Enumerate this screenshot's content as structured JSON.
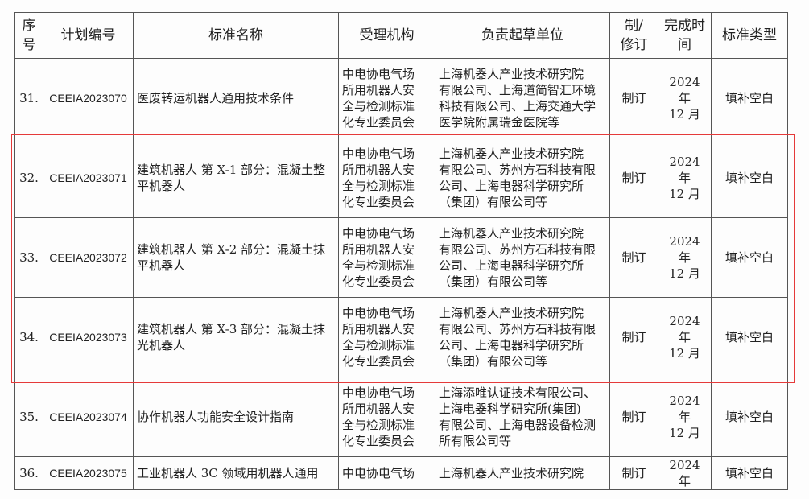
{
  "headers": [
    "序\n号",
    "计划编号",
    "标准名称",
    "受理机构",
    "负责起草单位",
    "制/\n修订",
    "完成时\n间",
    "标准类型"
  ],
  "rows": [
    {
      "no": "31.",
      "code": "CEEIA2023070",
      "name": "医废转运机器人通用技术条件",
      "org": "中电协电气场\n所用机器人安\n全与检测标准\n化专业委员会",
      "drafters": "上海机器人产业技术研究院\n有限公司、上海道简智汇环境\n科技有限公司、上海交通大学\n医学院附属瑞金医院等",
      "type": "制订",
      "time": "2024 年\n12 月",
      "category": "填补空白"
    },
    {
      "no": "32.",
      "code": "CEEIA2023071",
      "name": "建筑机器人 第 X-1 部分：混凝土整\n平机器人",
      "org": "中电协电气场\n所用机器人安\n全与检测标准\n化专业委员会",
      "drafters": "上海机器人产业技术研究院\n有限公司、苏州方石科技有限\n公司、上海电器科学研究所\n（集团）有限公司等",
      "type": "制订",
      "time": "2024 年\n12 月",
      "category": "填补空白"
    },
    {
      "no": "33.",
      "code": "CEEIA2023072",
      "name": "建筑机器人 第 X-2 部分：混凝土抹\n平机器人",
      "org": "中电协电气场\n所用机器人安\n全与检测标准\n化专业委员会",
      "drafters": "上海机器人产业技术研究院\n有限公司、苏州方石科技有限\n公司、上海电器科学研究所\n（集团）有限公司等",
      "type": "制订",
      "time": "2024 年\n12 月",
      "category": "填补空白"
    },
    {
      "no": "34.",
      "code": "CEEIA2023073",
      "name": "建筑机器人 第 X-3 部分：混凝土抹\n光机器人",
      "org": "中电协电气场\n所用机器人安\n全与检测标准\n化专业委员会",
      "drafters": "上海机器人产业技术研究院\n有限公司、苏州方石科技有限\n公司、上海电器科学研究所\n（集团）有限公司等",
      "type": "制订",
      "time": "2024 年\n12 月",
      "category": "填补空白"
    },
    {
      "no": "35.",
      "code": "CEEIA2023074",
      "name": "协作机器人功能安全设计指南",
      "org": "中电协电气场\n所用机器人安\n全与检测标准\n化专业委员会",
      "drafters": "上海添唯认证技术有限公司、\n上海电器科学研究所(集团)\n有限公司、上海电器设备检测\n所有限公司等",
      "type": "制订",
      "time": "2024 年\n12 月",
      "category": "填补空白"
    },
    {
      "no": "36.",
      "code": "CEEIA2023075",
      "name": "工业机器人 3C 领域用机器人通用",
      "org": "中电协电气场",
      "drafters": "上海机器人产业技术研究院",
      "type": "制订",
      "time": "2024 年",
      "category": "填补空白"
    }
  ],
  "highlight_color": "#e53a3a"
}
